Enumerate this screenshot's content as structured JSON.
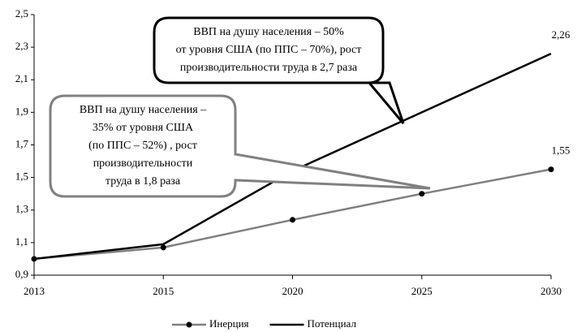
{
  "chart_data": {
    "type": "line",
    "categories": [
      "2013",
      "2015",
      "2020",
      "2025",
      "2030"
    ],
    "series": [
      {
        "name": "Инерция",
        "color": "#808080",
        "marker": true,
        "values": [
          1.0,
          1.07,
          1.24,
          1.4,
          1.55
        ],
        "value_labels": [
          null,
          null,
          null,
          null,
          "1,55"
        ]
      },
      {
        "name": "Потенциал",
        "color": "#000000",
        "marker": false,
        "values": [
          1.0,
          1.09,
          1.54,
          1.9,
          2.26
        ],
        "value_labels": [
          null,
          null,
          null,
          null,
          "2,26"
        ]
      }
    ],
    "ylim": [
      0.9,
      2.5
    ],
    "yticks": [
      {
        "value": 0.9,
        "label": "0,9"
      },
      {
        "value": 1.1,
        "label": "1,1"
      },
      {
        "value": 1.3,
        "label": "1,3"
      },
      {
        "value": 1.5,
        "label": "1,5"
      },
      {
        "value": 1.7,
        "label": "1,7"
      },
      {
        "value": 1.9,
        "label": "1,9"
      },
      {
        "value": 2.1,
        "label": "2,1"
      },
      {
        "value": 2.3,
        "label": "2,3"
      },
      {
        "value": 2.5,
        "label": "2,5"
      }
    ],
    "grid": false,
    "legend": "bottom",
    "annotations": [
      {
        "lines": [
          "ВВП на душу населения  – 50%",
          "от уровня США (по ППС – 70%), рост",
          "производительности труда в 2,7 раза"
        ]
      },
      {
        "lines": [
          "ВВП на душу населения –",
          "35% от уровня США",
          "(по ППС – 52%) , рост",
          "производительности",
          "труда в 1,8 раза"
        ]
      }
    ]
  }
}
